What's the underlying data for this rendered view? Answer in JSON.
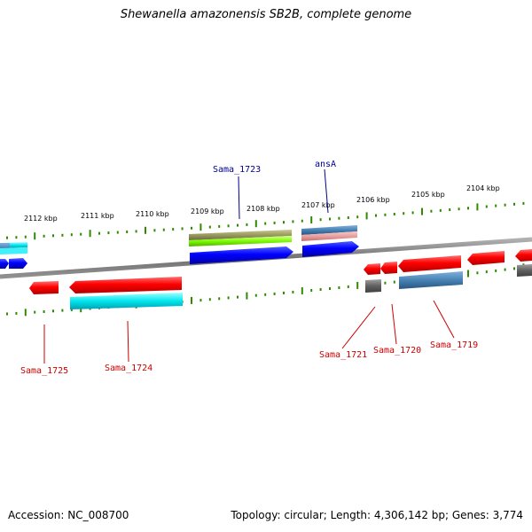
{
  "title": "Shewanella amazonensis SB2B, complete genome",
  "footer": {
    "accession": "Accession: NC_008700",
    "summary": "Topology: circular; Length: 4,306,142 bp; Genes: 3,774"
  },
  "ruler": {
    "labels": [
      "2112 kbp",
      "2111 kbp",
      "2110 kbp",
      "2109 kbp",
      "2108 kbp",
      "2107 kbp",
      "2106 kbp",
      "2105 kbp",
      "2104 kbp"
    ]
  },
  "gene_labels": {
    "sama_1723": "Sama_1723",
    "ansA": "ansA",
    "sama_1725": "Sama_1725",
    "sama_1724": "Sama_1724",
    "sama_1721": "Sama_1721",
    "sama_1720": "Sama_1720",
    "sama_1719": "Sama_1719"
  },
  "colors": {
    "backbone": "#808080",
    "tick": "#2e8b00",
    "cds": "#ff0000",
    "cds_forward": "#0000ff",
    "cyan_feature": "#00e5ee",
    "steel_feature": "#4682b4",
    "green_feature": "#7cfc00",
    "olive_feature": "#9a9a60",
    "pink_feature": "#e8a0a0",
    "grey_feature": "#606060",
    "label_forward": "#00008b",
    "label_reverse": "#cc0000"
  }
}
